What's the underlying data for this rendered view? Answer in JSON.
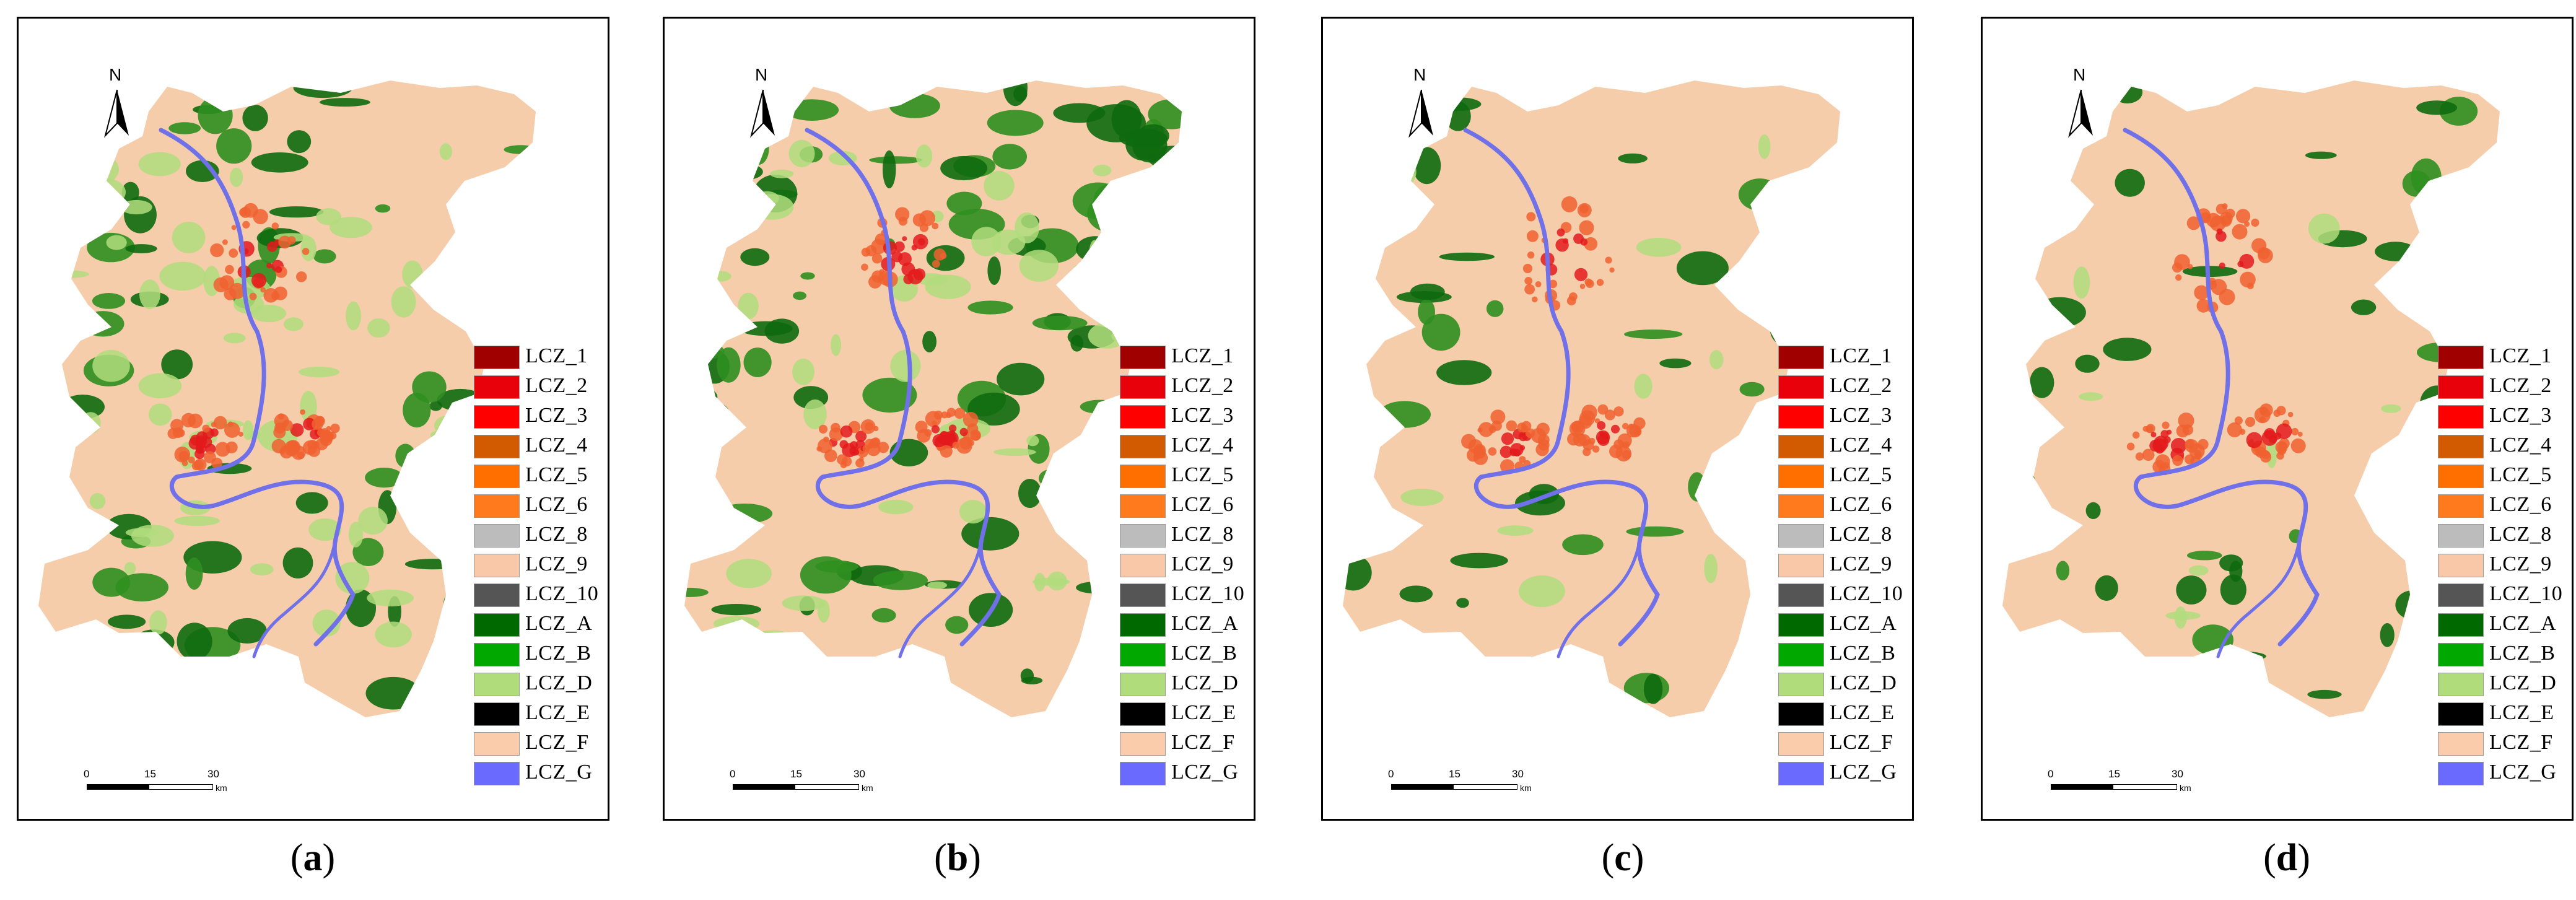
{
  "panels": [
    {
      "id": "a",
      "caption_letter": "a",
      "vegetation": "mixed"
    },
    {
      "id": "b",
      "caption_letter": "b",
      "vegetation": "dense"
    },
    {
      "id": "c",
      "caption_letter": "c",
      "vegetation": "sparse"
    },
    {
      "id": "d",
      "caption_letter": "d",
      "vegetation": "sparse"
    }
  ],
  "north_label": "N",
  "scale_bar": {
    "ticks": [
      "0",
      "15",
      "30"
    ],
    "unit": "km"
  },
  "legend": [
    {
      "label": "LCZ_1",
      "color": "#a00000"
    },
    {
      "label": "LCZ_2",
      "color": "#e8000a"
    },
    {
      "label": "LCZ_3",
      "color": "#ff0000"
    },
    {
      "label": "LCZ_4",
      "color": "#d25a00"
    },
    {
      "label": "LCZ_5",
      "color": "#ff6f00"
    },
    {
      "label": "LCZ_6",
      "color": "#ff7a1c"
    },
    {
      "label": "LCZ_8",
      "color": "#bcbcbc"
    },
    {
      "label": "LCZ_9",
      "color": "#f8c8a8"
    },
    {
      "label": "LCZ_10",
      "color": "#555555"
    },
    {
      "label": "LCZ_A",
      "color": "#006a00"
    },
    {
      "label": "LCZ_B",
      "color": "#00a800"
    },
    {
      "label": "LCZ_D",
      "color": "#b0dc7c"
    },
    {
      "label": "LCZ_E",
      "color": "#000000"
    },
    {
      "label": "LCZ_F",
      "color": "#fbccac"
    },
    {
      "label": "LCZ_G",
      "color": "#6a6aff"
    }
  ],
  "colors": {
    "land_base": "#f6cdab",
    "forest_dark": "#0e6a0e",
    "forest_mid": "#2f8f1f",
    "grass_light": "#b0dc7c",
    "urban_core": "#e31a1c",
    "urban_mid": "#f06030",
    "water": "#7070e8"
  }
}
